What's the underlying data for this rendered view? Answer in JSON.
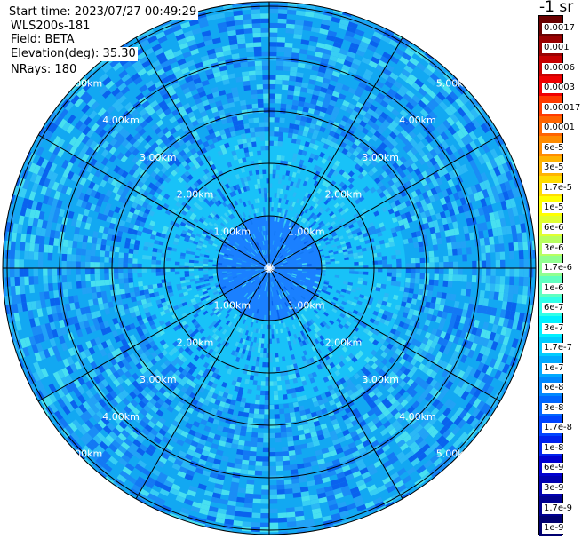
{
  "info": {
    "start_time": "Start time: 2023/07/27 00:49:29",
    "instrument": "WLS200s-181",
    "field": "Field: BETA",
    "elevation": "Elevation(deg): 35.30",
    "nrays": "NRays: 180"
  },
  "colorbar": {
    "units": "-1 sr",
    "labels": [
      "0.0017",
      "0.001",
      "0.0006",
      "0.0003",
      "0.00017",
      "0.0001",
      "6e-5",
      "3e-5",
      "1.7e-5",
      "1e-5",
      "6e-6",
      "3e-6",
      "1.7e-6",
      "1e-6",
      "6e-7",
      "3e-7",
      "1.7e-7",
      "1e-7",
      "6e-8",
      "3e-8",
      "1.7e-8",
      "1e-8",
      "6e-9",
      "3e-9",
      "1.7e-9",
      "1e-9"
    ],
    "colors": [
      "#6a0000",
      "#9a0000",
      "#c80000",
      "#f00000",
      "#ff3a00",
      "#ff6400",
      "#ff8c00",
      "#ffb400",
      "#ffdc00",
      "#ffff00",
      "#e0ff30",
      "#b8ff60",
      "#90ff90",
      "#60ffc0",
      "#30ffe8",
      "#00f0ff",
      "#00ccff",
      "#00aaff",
      "#0088ff",
      "#0066ff",
      "#0044ff",
      "#0022ee",
      "#0000d0",
      "#0000b0",
      "#000090",
      "#000070"
    ]
  },
  "chart_data": {
    "type": "heatmap",
    "title": "",
    "ring_labels": [
      "1.00km",
      "2.00km",
      "3.00km",
      "4.00km",
      "5.00km"
    ],
    "range_km": [
      0,
      5.0
    ],
    "spokes": 12,
    "grid": true,
    "zones": [
      {
        "from_km": 0,
        "to_km": 1.0,
        "color": "#1a80ff"
      },
      {
        "from_km": 1.0,
        "to_km": 2.6,
        "color": "#18c2f8"
      },
      {
        "from_km": 2.6,
        "to_km": 5.2,
        "color": "#12a8f2"
      }
    ],
    "beta_range": [
      "1e-9",
      "0.0017"
    ]
  }
}
